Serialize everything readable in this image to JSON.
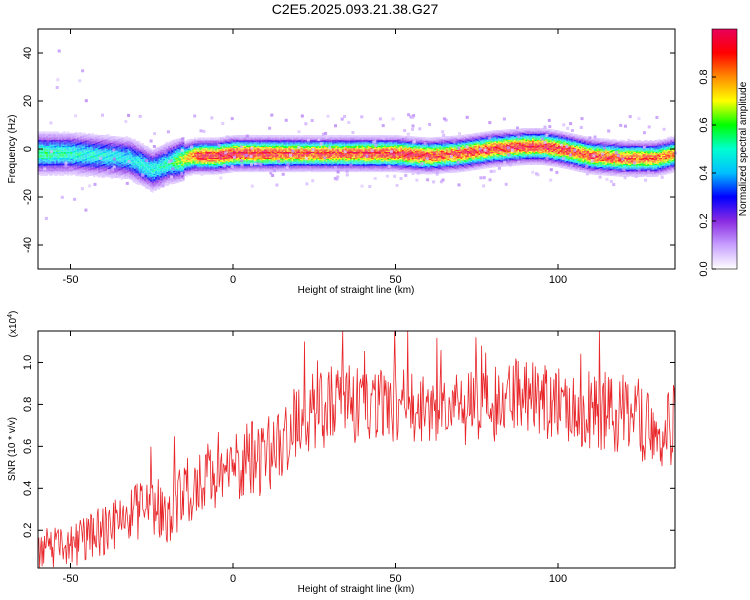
{
  "title": "C2E5.2025.093.21.38.G27",
  "chart_data": [
    {
      "type": "heatmap",
      "title": "C2E5.2025.093.21.38.G27",
      "xlabel": "Height of straight line (km)",
      "ylabel": "Frequency (Hz)",
      "xlim": [
        -60,
        136
      ],
      "ylim": [
        -50,
        50
      ],
      "xticks": [
        "-50",
        "0",
        "50",
        "100"
      ],
      "yticks": [
        "40",
        "20",
        "0",
        "-20",
        "-40"
      ],
      "colorbar": {
        "label": "Normalized spectral amplitude",
        "ticks": [
          "0.0",
          "0.2",
          "0.4",
          "0.6",
          "0.8"
        ],
        "range": [
          0,
          1
        ],
        "colormap": [
          "#ffffff",
          "#c8a0ff",
          "#8a2be2",
          "#0000ff",
          "#00bfff",
          "#00ffd0",
          "#00ff00",
          "#ffff00",
          "#ff8c00",
          "#ff0000",
          "#e8005a"
        ]
      },
      "ridge_center_hz": {
        "x": [
          -60,
          -50,
          -40,
          -32,
          -25,
          -20,
          -12,
          -5,
          0,
          10,
          20,
          30,
          40,
          50,
          60,
          70,
          80,
          90,
          95,
          100,
          110,
          120,
          130,
          136
        ],
        "y": [
          -2,
          -2,
          -3,
          -4,
          -9,
          -6,
          -3,
          -3,
          -2,
          -2,
          -2,
          -2,
          -2,
          -2,
          -3,
          -2,
          0,
          1,
          1,
          0,
          -3,
          -4,
          -4,
          -2
        ]
      },
      "ridge_peak_amplitude": {
        "x": [
          -60,
          -50,
          -35,
          -20,
          -10,
          0,
          20,
          40,
          55,
          65,
          80,
          92,
          100,
          115,
          130,
          136
        ],
        "y": [
          0.55,
          0.5,
          0.45,
          0.5,
          0.95,
          0.97,
          0.9,
          0.92,
          0.96,
          0.9,
          0.93,
          0.95,
          0.92,
          0.9,
          0.85,
          0.8
        ]
      }
    },
    {
      "type": "line",
      "xlabel": "Height of straight line (km)",
      "ylabel": "SNR (10 * v/v)",
      "multiplier": "(x10^4)",
      "xlim": [
        -60,
        136
      ],
      "ylim": [
        0.02,
        1.15
      ],
      "xticks": [
        "-50",
        "0",
        "50",
        "100"
      ],
      "yticks": [
        "1.0",
        "0.8",
        "0.6",
        "0.4",
        "0.2"
      ],
      "color": "#e8262a",
      "trend": {
        "x": [
          -60,
          -50,
          -40,
          -30,
          -20,
          -10,
          0,
          10,
          20,
          30,
          40,
          50,
          60,
          70,
          80,
          90,
          100,
          110,
          120,
          130,
          136
        ],
        "y": [
          0.1,
          0.12,
          0.2,
          0.28,
          0.3,
          0.44,
          0.5,
          0.56,
          0.72,
          0.8,
          0.8,
          0.8,
          0.78,
          0.77,
          0.8,
          0.85,
          0.8,
          0.78,
          0.75,
          0.7,
          0.7
        ]
      },
      "noise_amplitude": {
        "x": [
          -60,
          -20,
          20,
          60,
          100,
          136
        ],
        "y": [
          0.08,
          0.16,
          0.2,
          0.17,
          0.19,
          0.2
        ]
      }
    }
  ]
}
